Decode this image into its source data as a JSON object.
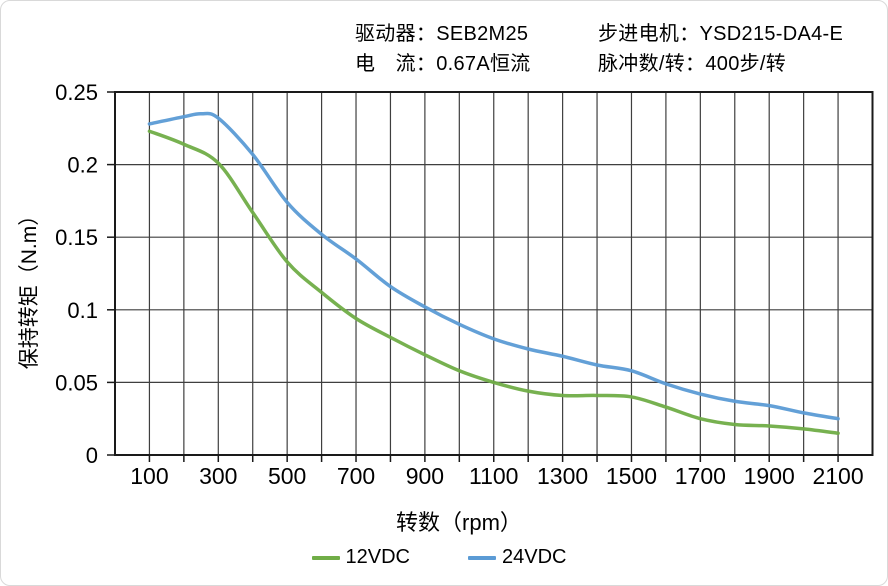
{
  "header": {
    "driver_label": "驱动器：",
    "driver_value": "SEB2M25",
    "current_label": "电　流：",
    "current_value": "0.67A恒流",
    "motor_label": "步进电机：",
    "motor_value": "YSD215-DA4-E",
    "pulses_label": "脉冲数/转：",
    "pulses_value": "400步/转"
  },
  "chart_data": {
    "type": "line",
    "title": "",
    "xlabel": "转数（rpm）",
    "ylabel": "保持转矩（N.m）",
    "xlim": [
      0,
      2200
    ],
    "ylim": [
      0,
      0.25
    ],
    "grid": true,
    "x_gridline_step": 100,
    "x_tick_labels": [
      "100",
      "300",
      "500",
      "700",
      "900",
      "1100",
      "1300",
      "1500",
      "1700",
      "1900",
      "2100"
    ],
    "x_tick_values": [
      100,
      300,
      500,
      700,
      900,
      1100,
      1300,
      1500,
      1700,
      1900,
      2100
    ],
    "y_ticks": [
      0,
      0.05,
      0.1,
      0.15,
      0.2,
      0.25
    ],
    "y_tick_labels": [
      "0",
      "0.05",
      "0.1",
      "0.15",
      "0.2",
      "0.25"
    ],
    "legend_position": "bottom",
    "series": [
      {
        "name": "12VDC",
        "color": "#70AD47",
        "points": [
          [
            100,
            0.223
          ],
          [
            200,
            0.214
          ],
          [
            300,
            0.201
          ],
          [
            400,
            0.167
          ],
          [
            500,
            0.133
          ],
          [
            600,
            0.112
          ],
          [
            700,
            0.094
          ],
          [
            800,
            0.081
          ],
          [
            900,
            0.069
          ],
          [
            1000,
            0.058
          ],
          [
            1100,
            0.05
          ],
          [
            1200,
            0.044
          ],
          [
            1300,
            0.041
          ],
          [
            1400,
            0.041
          ],
          [
            1500,
            0.04
          ],
          [
            1600,
            0.033
          ],
          [
            1700,
            0.025
          ],
          [
            1800,
            0.021
          ],
          [
            1900,
            0.02
          ],
          [
            2000,
            0.018
          ],
          [
            2100,
            0.015
          ]
        ]
      },
      {
        "name": "24VDC",
        "color": "#5B9BD5",
        "points": [
          [
            100,
            0.228
          ],
          [
            200,
            0.233
          ],
          [
            250,
            0.235
          ],
          [
            300,
            0.232
          ],
          [
            400,
            0.207
          ],
          [
            500,
            0.174
          ],
          [
            600,
            0.152
          ],
          [
            700,
            0.135
          ],
          [
            800,
            0.116
          ],
          [
            900,
            0.102
          ],
          [
            1000,
            0.09
          ],
          [
            1100,
            0.08
          ],
          [
            1200,
            0.073
          ],
          [
            1300,
            0.068
          ],
          [
            1400,
            0.062
          ],
          [
            1500,
            0.058
          ],
          [
            1600,
            0.049
          ],
          [
            1700,
            0.042
          ],
          [
            1800,
            0.037
          ],
          [
            1900,
            0.034
          ],
          [
            2000,
            0.029
          ],
          [
            2100,
            0.025
          ]
        ]
      }
    ]
  }
}
